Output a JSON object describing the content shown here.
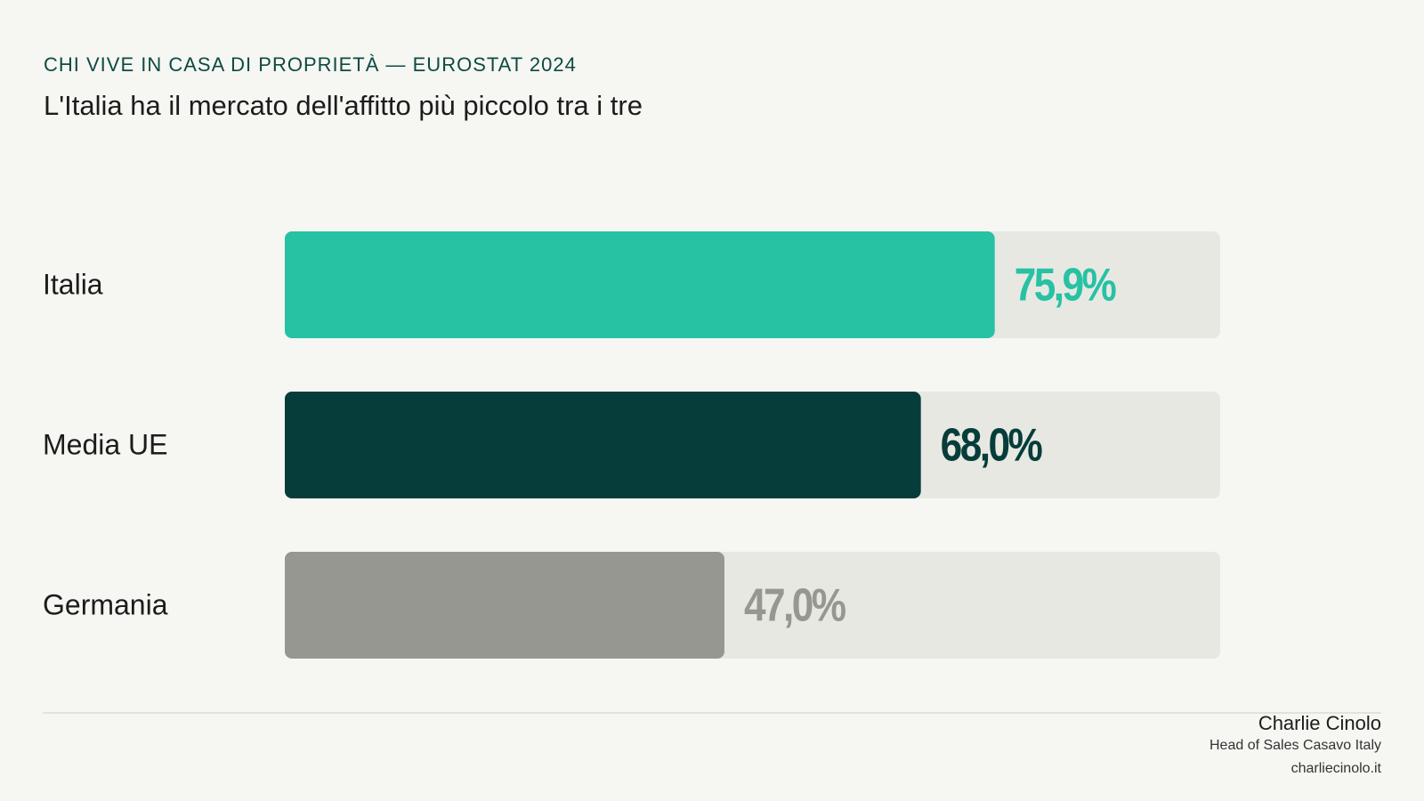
{
  "chart_data": {
    "type": "hbar",
    "kicker": "CHI VIVE IN CASA DI PROPRIETÀ — EUROSTAT 2024",
    "title": "L'Italia ha il mercato dell'affitto più piccolo tra i tre",
    "categories": [
      "Italia",
      "Media UE",
      "Germania"
    ],
    "values": [
      75.9,
      68.0,
      47.0
    ],
    "value_labels": [
      "75,9%",
      "68,0%",
      "47,0%"
    ],
    "colors": [
      "#26c2a3",
      "#063d3a",
      "#979792"
    ],
    "xlim": [
      0,
      100
    ]
  },
  "footer": {
    "name": "Charlie Cinolo",
    "role": "Head of Sales Casavo Italy",
    "website": "charliecinolo.it"
  }
}
